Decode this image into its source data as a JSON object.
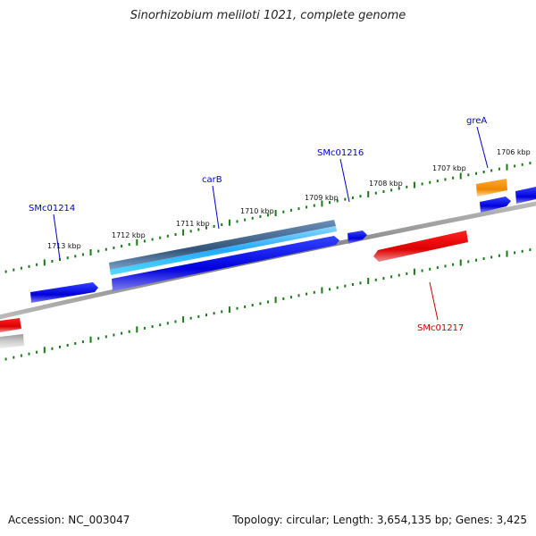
{
  "title": "Sinorhizobium meliloti 1021, complete genome",
  "footer": {
    "accession": "Accession: NC_003047",
    "summary": "Topology: circular; Length: 3,654,135 bp; Genes: 3,425"
  },
  "ticks": [
    {
      "label": "1713 kbp"
    },
    {
      "label": "1712 kbp"
    },
    {
      "label": "1711 kbp"
    },
    {
      "label": "1710 kbp"
    },
    {
      "label": "1709 kbp"
    },
    {
      "label": "1708 kbp"
    },
    {
      "label": "1707 kbp"
    },
    {
      "label": "1706 kbp"
    }
  ],
  "genes": [
    {
      "name": "SMc01214",
      "color": "#0000cc"
    },
    {
      "name": "carB",
      "color": "#0000cc"
    },
    {
      "name": "SMc01216",
      "color": "#0000cc"
    },
    {
      "name": "greA",
      "color": "#0000cc"
    },
    {
      "name": "SMc01217",
      "color": "#cc0000"
    }
  ],
  "colors": {
    "forward_gene": "#0000ee",
    "reverse_gene": "#ee0000",
    "rna_gene": "#ff8c00",
    "cds_feature": "#33aaee",
    "backbone": "#888888",
    "tick": "#1a7a1a"
  }
}
